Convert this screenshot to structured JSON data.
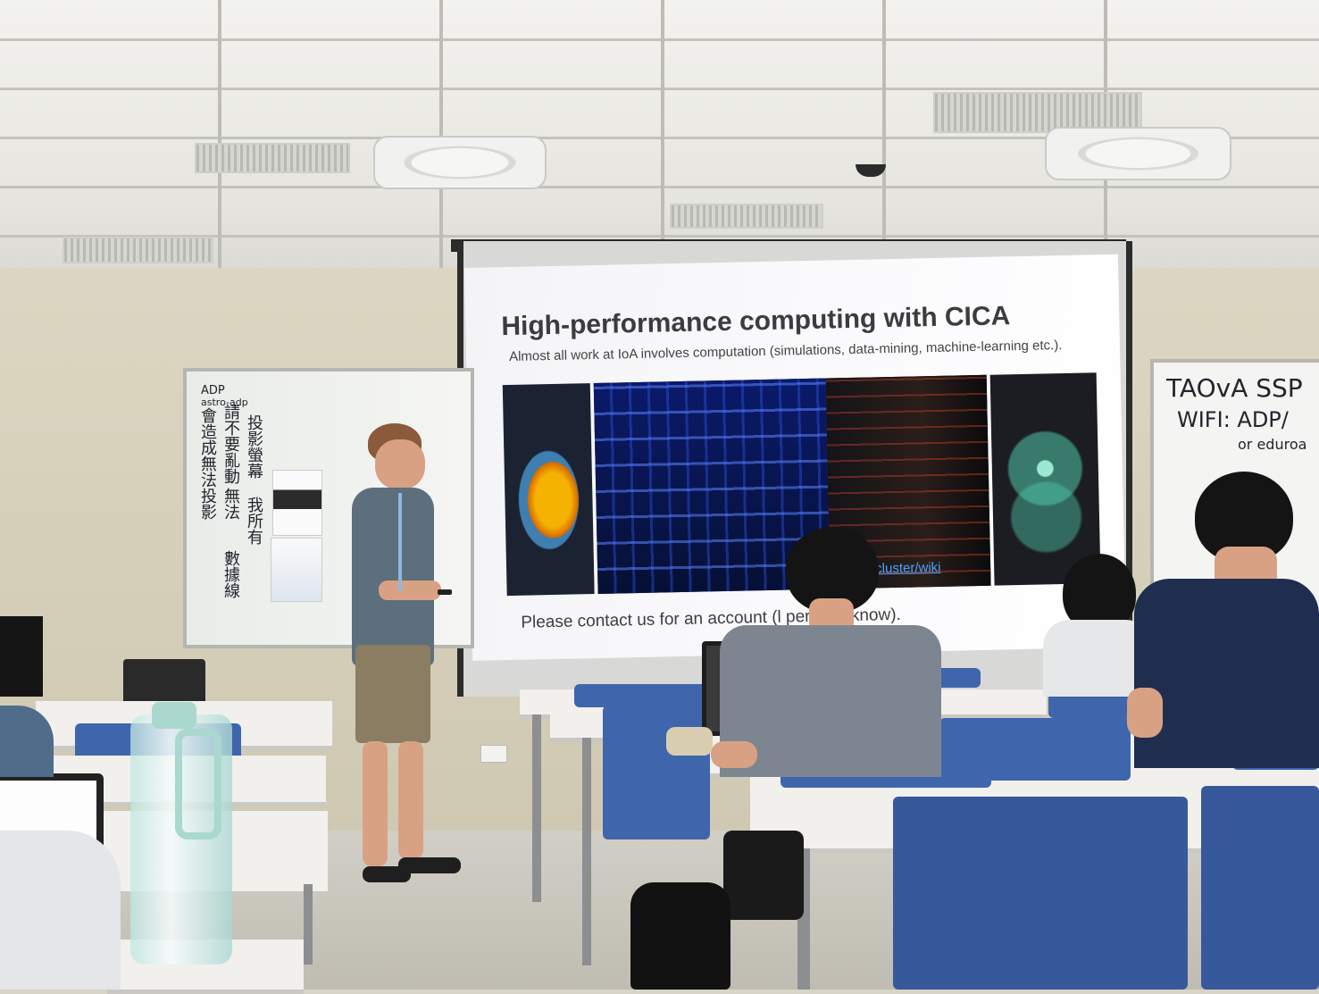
{
  "slide": {
    "title": "High-performance computing with CICA",
    "subtitle": "Almost all work at IoA involves computation (simulations, data-mining, machine-learning etc.).",
    "link_text": "https://                nu-ioa/cluster/wiki",
    "footer": "Please contact us for an account (l                  pervisor know)."
  },
  "whiteboard_left": {
    "label_line1": "ADP",
    "label_line2": "astro-adp",
    "columns": [
      "我所有",
      "投影螢幕",
      "無法",
      "請不要亂動",
      "會造成無法投影",
      "數據線"
    ]
  },
  "whiteboard_right": {
    "line1": "TAOvA  SSP",
    "line2": "WIFI:  ADP/",
    "line3": "or  eduroa"
  },
  "colors": {
    "chair_blue": "#3f66ad",
    "slide_background": "#f7f7f9",
    "wall": "#d6cfba"
  }
}
